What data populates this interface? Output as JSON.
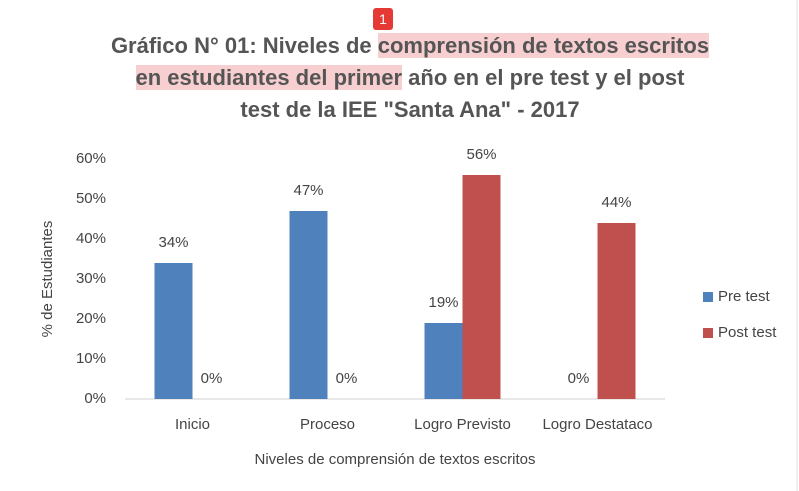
{
  "badge": "1",
  "chart_data": {
    "type": "bar",
    "title": [
      [
        {
          "text": "Gráfico N° 01: Niveles de ",
          "highlight": false
        },
        {
          "text": "comprensión de textos escritos",
          "highlight": true
        }
      ],
      [
        {
          "text": "en estudiantes del primer",
          "highlight": true
        },
        {
          "text": " año en el pre test y el post",
          "highlight": false
        }
      ],
      [
        {
          "text": "test de la IEE \"Santa Ana\" - 2017",
          "highlight": false
        }
      ]
    ],
    "x_label": "Niveles de comprensión de textos escritos",
    "y_label": "% de Estudiantes",
    "categories": [
      "Inicio",
      "Proceso",
      "Logro Previsto",
      "Logro Destataco"
    ],
    "series": [
      {
        "name": "Pre test",
        "color": "#4f81bd",
        "values": [
          34,
          47,
          19,
          0
        ],
        "value_labels": [
          "34%",
          "47%",
          "19%",
          "0%"
        ]
      },
      {
        "name": "Post test",
        "color": "#c0504d",
        "values": [
          0,
          0,
          56,
          44
        ],
        "value_labels": [
          "0%",
          "0%",
          "56%",
          "44%"
        ]
      }
    ],
    "ylim": [
      0,
      60
    ],
    "yticks": [
      {
        "value": 0,
        "label": "0%"
      },
      {
        "value": 10,
        "label": "10%"
      },
      {
        "value": 20,
        "label": "20%"
      },
      {
        "value": 30,
        "label": "30%"
      },
      {
        "value": 40,
        "label": "40%"
      },
      {
        "value": 50,
        "label": "50%"
      },
      {
        "value": 60,
        "label": "60%"
      }
    ],
    "grid": false,
    "legend": "right"
  }
}
